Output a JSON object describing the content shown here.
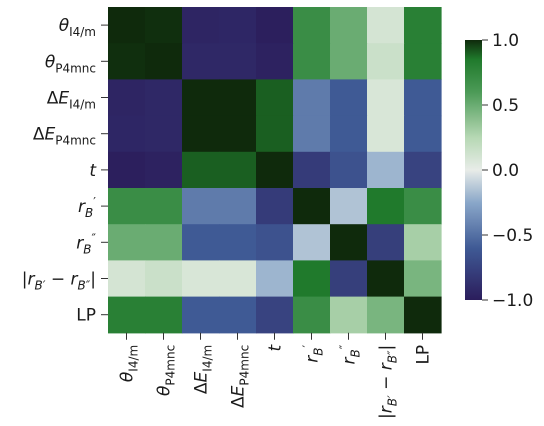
{
  "chart_data": {
    "type": "heatmap",
    "labels": [
      {
        "base": "θ",
        "sub": "I4/m",
        "sup": ""
      },
      {
        "base": "θ",
        "sub": "P4mnc",
        "sup": ""
      },
      {
        "base": "ΔE",
        "sub": "I4/m",
        "sup": ""
      },
      {
        "base": "ΔE",
        "sub": "P4mnc",
        "sup": ""
      },
      {
        "base": "t",
        "sub": "",
        "sup": ""
      },
      {
        "base": "r",
        "sub": "B",
        "sup": "′"
      },
      {
        "base": "r",
        "sub": "B",
        "sup": "″"
      },
      {
        "base": "|r",
        "sub": "B′",
        "mid": " − r",
        "sub2": "B″",
        "tail": "|"
      },
      {
        "base": "LP",
        "sub": "",
        "sup": "",
        "roman": true
      }
    ],
    "matrix": [
      [
        1.0,
        0.99,
        -0.95,
        -0.94,
        -0.99,
        0.7,
        0.5,
        0.1,
        0.8
      ],
      [
        0.99,
        1.0,
        -0.93,
        -0.93,
        -0.97,
        0.7,
        0.5,
        0.15,
        0.8
      ],
      [
        -0.95,
        -0.93,
        1.0,
        1.0,
        0.9,
        -0.45,
        -0.6,
        0.08,
        -0.6
      ],
      [
        -0.94,
        -0.93,
        1.0,
        1.0,
        0.9,
        -0.45,
        -0.6,
        0.08,
        -0.6
      ],
      [
        -0.99,
        -0.97,
        0.9,
        0.9,
        1.0,
        -0.8,
        -0.65,
        -0.2,
        -0.75
      ],
      [
        0.7,
        0.7,
        -0.45,
        -0.45,
        -0.8,
        1.0,
        -0.15,
        0.85,
        0.7
      ],
      [
        0.5,
        0.5,
        -0.6,
        -0.6,
        -0.65,
        -0.15,
        1.0,
        -0.78,
        0.3
      ],
      [
        0.1,
        0.15,
        0.08,
        0.08,
        -0.2,
        0.85,
        -0.78,
        1.0,
        0.45
      ],
      [
        0.8,
        0.8,
        -0.6,
        -0.6,
        -0.75,
        0.7,
        0.3,
        0.45,
        1.0
      ]
    ],
    "colorbar": {
      "min": -1.0,
      "max": 1.0,
      "ticks": [
        1.0,
        0.5,
        0.0,
        -0.5,
        -1.0
      ],
      "tick_labels": [
        "1.0",
        "0.5",
        "0.0",
        "−0.5",
        "−1.0"
      ]
    },
    "colors": {
      "stops": [
        [
          -1.0,
          "#2b1d5c"
        ],
        [
          -0.6,
          "#3f5a95"
        ],
        [
          -0.25,
          "#8aa7c9"
        ],
        [
          0.0,
          "#e8ece8"
        ],
        [
          0.25,
          "#b6d8b4"
        ],
        [
          0.6,
          "#4c9a57"
        ],
        [
          0.85,
          "#207a2c"
        ],
        [
          1.0,
          "#0f2a0c"
        ]
      ]
    }
  }
}
